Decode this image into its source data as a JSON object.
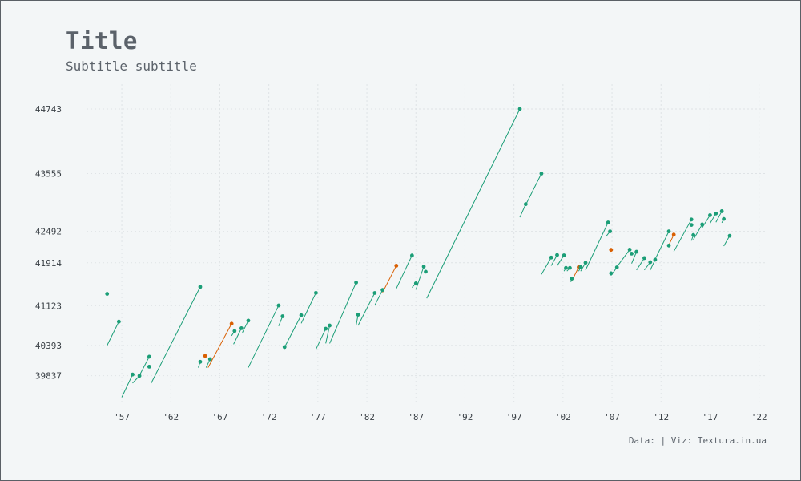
{
  "title": "Title",
  "subtitle": "Subtitle subtitle",
  "caption": "Data: | Viz: Textura.in.ua",
  "colors": {
    "background": "#f3f6f7",
    "text": "#5b626a",
    "grid": "#dfe3e6",
    "series_main": "#1b9e77",
    "series_highlight": "#d95f02"
  },
  "chart_data": {
    "type": "scatter",
    "title": "Title",
    "subtitle": "Subtitle subtitle",
    "xlabel": "",
    "ylabel": "",
    "xlim": [
      1953.4,
      2022.6
    ],
    "ylim": [
      39300,
      45200
    ],
    "x_ticks": [
      1957,
      1962,
      1967,
      1972,
      1977,
      1982,
      1987,
      1992,
      1997,
      2002,
      2007,
      2012,
      2017,
      2022
    ],
    "x_tick_labels": [
      "'57",
      "'62",
      "'67",
      "'72",
      "'77",
      "'82",
      "'87",
      "'92",
      "'97",
      "'02",
      "'07",
      "'12",
      "'17",
      "'22"
    ],
    "y_ticks": [
      39837,
      40393,
      41123,
      41914,
      42492,
      43555,
      44743
    ],
    "y_tick_labels": [
      "39837",
      "40393",
      "41123",
      "41914",
      "42492",
      "43555",
      "44743"
    ],
    "grid": true,
    "legend": "none",
    "points": [
      {
        "x": 1955.5,
        "y": 41342,
        "x0": null,
        "y0": null,
        "highlight": false
      },
      {
        "x": 1956.7,
        "y": 40831,
        "x0": 1955.5,
        "y0": 40393,
        "highlight": false
      },
      {
        "x": 1958.1,
        "y": 39858,
        "x0": 1957.0,
        "y0": 39440,
        "highlight": false
      },
      {
        "x": 1958.8,
        "y": 39833,
        "x0": 1958.1,
        "y0": 39700,
        "highlight": false
      },
      {
        "x": 1959.8,
        "y": 40186,
        "x0": 1958.8,
        "y0": 39840,
        "highlight": false
      },
      {
        "x": 1959.8,
        "y": 40002,
        "x0": null,
        "y0": null,
        "highlight": false
      },
      {
        "x": 1965.0,
        "y": 41470,
        "x0": 1960.0,
        "y0": 39700,
        "highlight": false
      },
      {
        "x": 1965.0,
        "y": 40092,
        "x0": 1964.8,
        "y0": 39985,
        "highlight": false
      },
      {
        "x": 1965.5,
        "y": 40200,
        "x0": null,
        "y0": null,
        "highlight": true
      },
      {
        "x": 1966.0,
        "y": 40140,
        "x0": 1965.6,
        "y0": 39985,
        "highlight": false
      },
      {
        "x": 1968.2,
        "y": 40793,
        "x0": 1965.8,
        "y0": 39985,
        "highlight": true
      },
      {
        "x": 1968.5,
        "y": 40658,
        "x0": 1968.2,
        "y0": 40570,
        "highlight": false
      },
      {
        "x": 1969.2,
        "y": 40710,
        "x0": 1968.4,
        "y0": 40415,
        "highlight": false
      },
      {
        "x": 1969.9,
        "y": 40850,
        "x0": 1969.3,
        "y0": 40630,
        "highlight": false
      },
      {
        "x": 1973.0,
        "y": 41128,
        "x0": 1969.9,
        "y0": 39985,
        "highlight": false
      },
      {
        "x": 1973.4,
        "y": 40930,
        "x0": 1973.0,
        "y0": 40750,
        "highlight": false
      },
      {
        "x": 1973.6,
        "y": 40363,
        "x0": 1973.5,
        "y0": 40350,
        "highlight": false
      },
      {
        "x": 1975.3,
        "y": 40950,
        "x0": 1973.7,
        "y0": 40393,
        "highlight": false
      },
      {
        "x": 1976.8,
        "y": 41360,
        "x0": 1975.3,
        "y0": 40800,
        "highlight": false
      },
      {
        "x": 1977.8,
        "y": 40700,
        "x0": 1976.8,
        "y0": 40320,
        "highlight": false
      },
      {
        "x": 1978.2,
        "y": 40760,
        "x0": 1977.8,
        "y0": 40430,
        "highlight": false
      },
      {
        "x": 1980.9,
        "y": 41550,
        "x0": 1978.2,
        "y0": 40430,
        "highlight": false
      },
      {
        "x": 1981.1,
        "y": 40958,
        "x0": 1980.9,
        "y0": 40760,
        "highlight": false
      },
      {
        "x": 1982.8,
        "y": 41358,
        "x0": 1981.1,
        "y0": 40760,
        "highlight": false
      },
      {
        "x": 1983.6,
        "y": 41414,
        "x0": 1982.8,
        "y0": 41130,
        "highlight": false
      },
      {
        "x": 1985.0,
        "y": 41860,
        "x0": 1983.6,
        "y0": 41368,
        "highlight": true
      },
      {
        "x": 1986.6,
        "y": 42048,
        "x0": 1985.0,
        "y0": 41440,
        "highlight": false
      },
      {
        "x": 1987.0,
        "y": 41536,
        "x0": 1986.6,
        "y0": 41460,
        "highlight": false
      },
      {
        "x": 1987.8,
        "y": 41844,
        "x0": 1987.0,
        "y0": 41420,
        "highlight": false
      },
      {
        "x": 1988.0,
        "y": 41750,
        "x0": null,
        "y0": null,
        "highlight": false
      },
      {
        "x": 1997.6,
        "y": 44743,
        "x0": 1988.1,
        "y0": 41260,
        "highlight": false
      },
      {
        "x": 1998.2,
        "y": 42992,
        "x0": 1997.6,
        "y0": 42750,
        "highlight": false
      },
      {
        "x": 1999.8,
        "y": 43555,
        "x0": 1998.2,
        "y0": 42980,
        "highlight": false
      },
      {
        "x": 2000.8,
        "y": 42010,
        "x0": 1999.8,
        "y0": 41700,
        "highlight": false
      },
      {
        "x": 2001.4,
        "y": 42057,
        "x0": 2000.8,
        "y0": 41860,
        "highlight": false
      },
      {
        "x": 2002.1,
        "y": 42050,
        "x0": 2001.4,
        "y0": 41860,
        "highlight": false
      },
      {
        "x": 2002.3,
        "y": 41820,
        "x0": 2002.1,
        "y0": 41760,
        "highlight": false
      },
      {
        "x": 2002.7,
        "y": 41820,
        "x0": 2002.4,
        "y0": 41760,
        "highlight": false
      },
      {
        "x": 2002.9,
        "y": 41622,
        "x0": 2002.8,
        "y0": 41560,
        "highlight": false
      },
      {
        "x": 2003.6,
        "y": 41833,
        "x0": 2002.9,
        "y0": 41580,
        "highlight": true
      },
      {
        "x": 2003.8,
        "y": 41834,
        "x0": 2003.6,
        "y0": 41760,
        "highlight": false
      },
      {
        "x": 2004.3,
        "y": 41914,
        "x0": 2003.8,
        "y0": 41760,
        "highlight": false
      },
      {
        "x": 2006.6,
        "y": 42655,
        "x0": 2004.3,
        "y0": 41780,
        "highlight": false
      },
      {
        "x": 2006.8,
        "y": 42492,
        "x0": 2006.4,
        "y0": 42400,
        "highlight": false
      },
      {
        "x": 2006.9,
        "y": 42151,
        "x0": null,
        "y0": null,
        "highlight": true
      },
      {
        "x": 2006.9,
        "y": 41720,
        "x0": 2006.8,
        "y0": 41680,
        "highlight": false
      },
      {
        "x": 2007.5,
        "y": 41830,
        "x0": 2006.9,
        "y0": 41680,
        "highlight": false
      },
      {
        "x": 2008.8,
        "y": 42155,
        "x0": 2007.5,
        "y0": 41840,
        "highlight": false
      },
      {
        "x": 2009.0,
        "y": 42082,
        "x0": null,
        "y0": null,
        "highlight": false
      },
      {
        "x": 2009.5,
        "y": 42116,
        "x0": 2009.0,
        "y0": 41900,
        "highlight": false
      },
      {
        "x": 2010.3,
        "y": 42000,
        "x0": 2009.5,
        "y0": 41780,
        "highlight": false
      },
      {
        "x": 2010.9,
        "y": 41925,
        "x0": 2010.3,
        "y0": 41780,
        "highlight": false
      },
      {
        "x": 2011.4,
        "y": 41970,
        "x0": 2010.9,
        "y0": 41780,
        "highlight": false
      },
      {
        "x": 2012.8,
        "y": 42492,
        "x0": 2011.4,
        "y0": 41980,
        "highlight": false
      },
      {
        "x": 2012.8,
        "y": 42230,
        "x0": null,
        "y0": null,
        "highlight": false
      },
      {
        "x": 2013.3,
        "y": 42432,
        "x0": 2012.8,
        "y0": 42240,
        "highlight": true
      },
      {
        "x": 2015.1,
        "y": 42710,
        "x0": 2013.3,
        "y0": 42120,
        "highlight": false
      },
      {
        "x": 2015.1,
        "y": 42610,
        "x0": null,
        "y0": null,
        "highlight": false
      },
      {
        "x": 2015.3,
        "y": 42425,
        "x0": 2015.1,
        "y0": 42320,
        "highlight": false
      },
      {
        "x": 2016.2,
        "y": 42620,
        "x0": 2015.3,
        "y0": 42340,
        "highlight": false
      },
      {
        "x": 2017.0,
        "y": 42790,
        "x0": 2016.2,
        "y0": 42560,
        "highlight": false
      },
      {
        "x": 2017.6,
        "y": 42820,
        "x0": 2017.0,
        "y0": 42640,
        "highlight": false
      },
      {
        "x": 2018.2,
        "y": 42863,
        "x0": 2017.6,
        "y0": 42660,
        "highlight": false
      },
      {
        "x": 2018.4,
        "y": 42720,
        "x0": 2018.2,
        "y0": 42650,
        "highlight": false
      },
      {
        "x": 2019.0,
        "y": 42410,
        "x0": 2018.4,
        "y0": 42220,
        "highlight": false
      }
    ]
  }
}
